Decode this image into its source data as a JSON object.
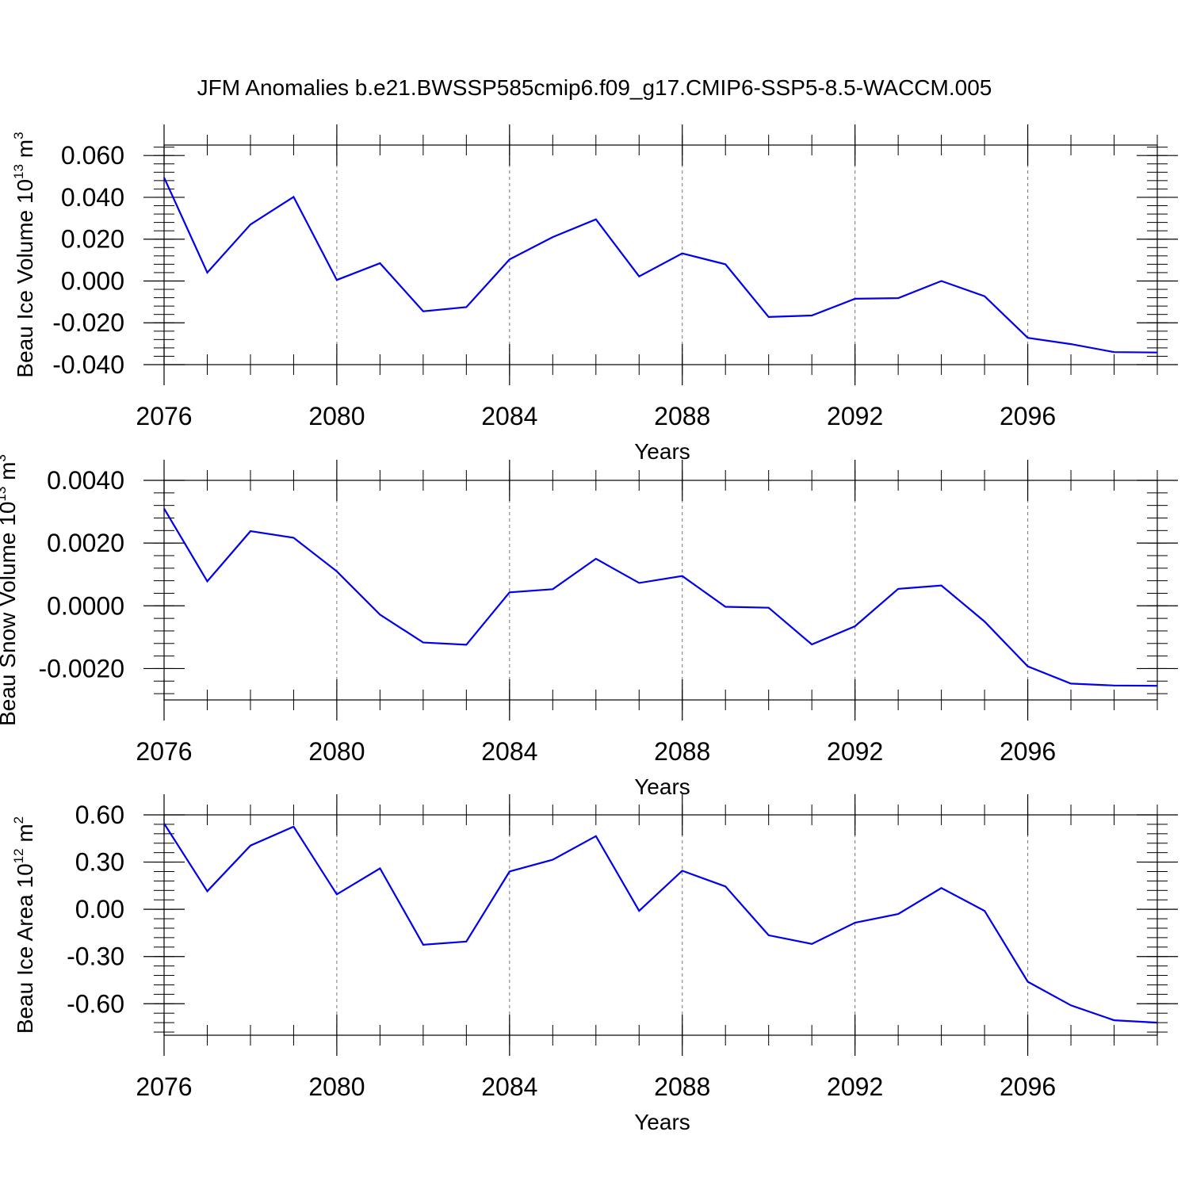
{
  "chart_data": {
    "title": "JFM Anomalies b.e21.BWSSP585cmip6.f09_g17.CMIP6-SSP5-8.5-WACCM.005",
    "line_color": "#0000ee",
    "years": [
      2076,
      2077,
      2078,
      2079,
      2080,
      2081,
      2082,
      2083,
      2084,
      2085,
      2086,
      2087,
      2088,
      2089,
      2090,
      2091,
      2092,
      2093,
      2094,
      2095,
      2096,
      2097,
      2098,
      2099
    ],
    "panels": [
      {
        "type": "line",
        "ylabel_text": "Beau Ice Volume 10",
        "ylabel_exp": "13",
        "ylabel_unit": "m",
        "ylabel_unit_exp": "3",
        "xlabel": "Years",
        "ylim": [
          -0.04,
          0.065
        ],
        "xlim": [
          2076,
          2099
        ],
        "yticks": [
          -0.04,
          -0.02,
          0.0,
          0.02,
          0.04,
          0.06
        ],
        "ytick_labels": [
          "-0.040",
          "-0.020",
          "0.000",
          "0.020",
          "0.040",
          "0.060"
        ],
        "xticks": [
          2076,
          2080,
          2084,
          2088,
          2092,
          2096
        ],
        "xtick_labels": [
          "2076",
          "2080",
          "2084",
          "2088",
          "2092",
          "2096"
        ],
        "values": [
          0.0495,
          0.004,
          0.027,
          0.0402,
          0.0005,
          0.0085,
          -0.0145,
          -0.0125,
          0.0103,
          0.021,
          0.0295,
          0.0022,
          0.0132,
          0.008,
          -0.0172,
          -0.0165,
          -0.0085,
          -0.0082,
          0.0,
          -0.0073,
          -0.0272,
          -0.0302,
          -0.034,
          -0.0342
        ]
      },
      {
        "type": "line",
        "ylabel_text": "Beau Snow Volume 10",
        "ylabel_exp": "13",
        "ylabel_unit": "m",
        "ylabel_unit_exp": "3",
        "xlabel": "Years",
        "ylim": [
          -0.003,
          0.004
        ],
        "xlim": [
          2076,
          2099
        ],
        "yticks": [
          -0.002,
          0.0,
          0.002,
          0.004
        ],
        "ytick_labels": [
          "-0.0020",
          "0.0000",
          "0.0020",
          "0.0040"
        ],
        "xticks": [
          2076,
          2080,
          2084,
          2088,
          2092,
          2096
        ],
        "xtick_labels": [
          "2076",
          "2080",
          "2084",
          "2088",
          "2092",
          "2096"
        ],
        "values": [
          0.0031,
          0.00078,
          0.00238,
          0.00217,
          0.0011,
          -0.00028,
          -0.00117,
          -0.00124,
          0.00043,
          0.00053,
          0.0015,
          0.00073,
          0.00095,
          -3e-05,
          -6e-05,
          -0.00123,
          -0.00065,
          0.00054,
          0.00065,
          -0.0005,
          -0.00193,
          -0.00248,
          -0.00254,
          -0.00255
        ]
      },
      {
        "type": "line",
        "ylabel_text": "Beau Ice Area 10",
        "ylabel_exp": "12",
        "ylabel_unit": "m",
        "ylabel_unit_exp": "2",
        "xlabel": "Years",
        "ylim": [
          -0.8,
          0.6
        ],
        "xlim": [
          2076,
          2099
        ],
        "yticks": [
          -0.6,
          -0.3,
          0.0,
          0.3,
          0.6
        ],
        "ytick_labels": [
          "-0.60",
          "-0.30",
          "0.00",
          "0.30",
          "0.60"
        ],
        "xticks": [
          2076,
          2080,
          2084,
          2088,
          2092,
          2096
        ],
        "xtick_labels": [
          "2076",
          "2080",
          "2084",
          "2088",
          "2092",
          "2096"
        ],
        "values": [
          0.545,
          0.115,
          0.405,
          0.525,
          0.095,
          0.26,
          -0.225,
          -0.205,
          0.24,
          0.315,
          0.465,
          -0.01,
          0.245,
          0.145,
          -0.165,
          -0.22,
          -0.085,
          -0.03,
          0.135,
          -0.01,
          -0.46,
          -0.61,
          -0.705,
          -0.72
        ]
      }
    ]
  }
}
